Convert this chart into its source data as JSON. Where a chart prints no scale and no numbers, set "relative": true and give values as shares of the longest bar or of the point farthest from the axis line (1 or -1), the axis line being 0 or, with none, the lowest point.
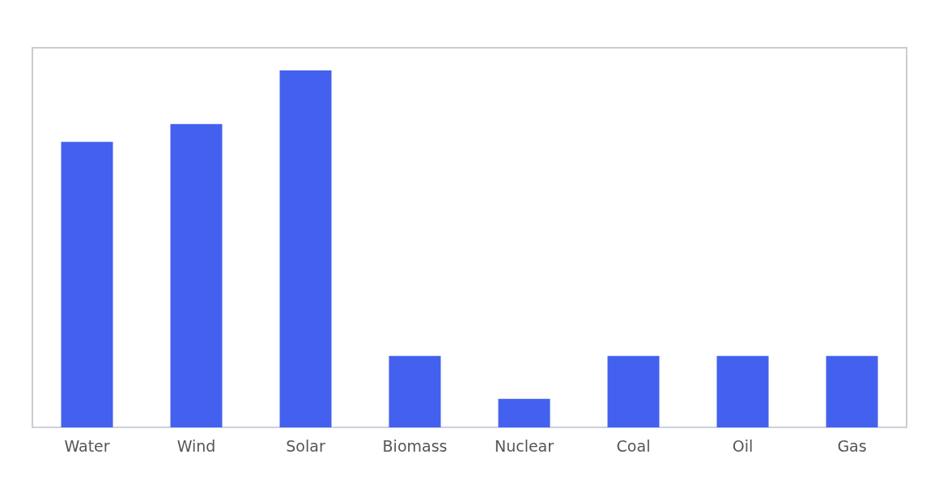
{
  "chart_data": {
    "type": "bar",
    "relative": true,
    "categories": [
      "Water",
      "Wind",
      "Solar",
      "Biomass",
      "Nuclear",
      "Coal",
      "Oil",
      "Gas"
    ],
    "values": [
      0.8,
      0.85,
      1,
      0.2,
      0.08,
      0.2,
      0.2,
      0.2
    ],
    "color": "#4361ee"
  }
}
